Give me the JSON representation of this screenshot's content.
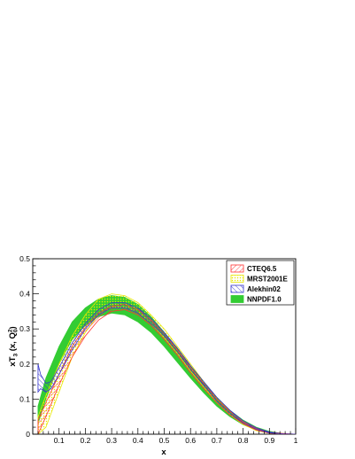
{
  "chart_data": {
    "type": "area",
    "title": "",
    "xlabel": "x",
    "ylabel_main": "xT",
    "ylabel_sub": "3",
    "ylabel_args": " (x, Q",
    "ylabel_sub2": "0",
    "ylabel_sup2": "2",
    "ylabel_close": ")",
    "xlim": [
      0.0,
      1.0
    ],
    "ylim": [
      0.0,
      0.5
    ],
    "x_ticks": [
      "0.1",
      "0.2",
      "0.3",
      "0.4",
      "0.5",
      "0.6",
      "0.7",
      "0.8",
      "0.9",
      "1"
    ],
    "y_ticks": [
      "0",
      "0.1",
      "0.2",
      "0.3",
      "0.4",
      "0.5"
    ],
    "grid": false,
    "legend_position": "top-right",
    "series": [
      {
        "name": "CTEQ6.5",
        "color": "#ff3333",
        "pattern": "hatch-diag",
        "x": [
          0.02,
          0.05,
          0.1,
          0.15,
          0.2,
          0.25,
          0.3,
          0.35,
          0.4,
          0.45,
          0.5,
          0.55,
          0.6,
          0.65,
          0.7,
          0.75,
          0.8,
          0.85,
          0.9,
          0.95,
          1.0
        ],
        "lower": [
          0.0,
          0.05,
          0.14,
          0.22,
          0.28,
          0.325,
          0.35,
          0.355,
          0.34,
          0.31,
          0.27,
          0.225,
          0.175,
          0.13,
          0.09,
          0.055,
          0.03,
          0.012,
          0.003,
          0.001,
          0.0
        ],
        "upper": [
          0.04,
          0.09,
          0.17,
          0.25,
          0.305,
          0.345,
          0.365,
          0.37,
          0.355,
          0.325,
          0.285,
          0.24,
          0.19,
          0.145,
          0.1,
          0.065,
          0.035,
          0.016,
          0.006,
          0.002,
          0.0
        ]
      },
      {
        "name": "MRST2001E",
        "color": "#e8e800",
        "pattern": "dots",
        "x": [
          0.02,
          0.05,
          0.1,
          0.15,
          0.2,
          0.25,
          0.3,
          0.35,
          0.4,
          0.45,
          0.5,
          0.55,
          0.6,
          0.65,
          0.7,
          0.75,
          0.8,
          0.85,
          0.9,
          0.95,
          1.0
        ],
        "lower": [
          0.0,
          0.02,
          0.12,
          0.22,
          0.29,
          0.34,
          0.36,
          0.36,
          0.345,
          0.315,
          0.275,
          0.23,
          0.18,
          0.135,
          0.09,
          0.055,
          0.028,
          0.01,
          0.003,
          0.001,
          0.0
        ],
        "upper": [
          0.05,
          0.11,
          0.2,
          0.28,
          0.34,
          0.385,
          0.4,
          0.395,
          0.375,
          0.34,
          0.3,
          0.25,
          0.2,
          0.15,
          0.105,
          0.065,
          0.035,
          0.015,
          0.005,
          0.001,
          0.0
        ]
      },
      {
        "name": "Alekhin02",
        "color": "#3333cc",
        "pattern": "hatch-diag",
        "x": [
          0.02,
          0.03,
          0.05,
          0.07,
          0.1,
          0.15,
          0.2,
          0.25,
          0.3,
          0.35,
          0.4,
          0.45,
          0.5,
          0.55,
          0.6,
          0.65,
          0.7,
          0.75,
          0.8,
          0.85,
          0.9,
          0.95,
          1.0
        ],
        "lower": [
          0.12,
          0.13,
          0.12,
          0.13,
          0.17,
          0.24,
          0.3,
          0.34,
          0.36,
          0.36,
          0.345,
          0.315,
          0.28,
          0.235,
          0.185,
          0.14,
          0.095,
          0.06,
          0.032,
          0.014,
          0.004,
          0.001,
          0.0
        ],
        "upper": [
          0.2,
          0.17,
          0.145,
          0.15,
          0.19,
          0.26,
          0.315,
          0.355,
          0.375,
          0.375,
          0.36,
          0.33,
          0.29,
          0.245,
          0.195,
          0.15,
          0.105,
          0.068,
          0.038,
          0.018,
          0.006,
          0.001,
          0.0
        ]
      },
      {
        "name": "NNPDF1.0",
        "color": "#33cc33",
        "pattern": "solid",
        "x": [
          0.02,
          0.05,
          0.1,
          0.15,
          0.2,
          0.25,
          0.3,
          0.35,
          0.4,
          0.45,
          0.5,
          0.55,
          0.6,
          0.65,
          0.7,
          0.75,
          0.8,
          0.85,
          0.9,
          0.95,
          1.0
        ],
        "lower": [
          0.03,
          0.1,
          0.2,
          0.27,
          0.31,
          0.335,
          0.345,
          0.34,
          0.32,
          0.29,
          0.25,
          0.205,
          0.16,
          0.118,
          0.08,
          0.05,
          0.027,
          0.012,
          0.004,
          0.001,
          0.0
        ],
        "upper": [
          0.08,
          0.16,
          0.25,
          0.32,
          0.36,
          0.385,
          0.395,
          0.39,
          0.37,
          0.335,
          0.29,
          0.245,
          0.195,
          0.148,
          0.105,
          0.068,
          0.04,
          0.02,
          0.008,
          0.002,
          0.0
        ]
      }
    ]
  }
}
